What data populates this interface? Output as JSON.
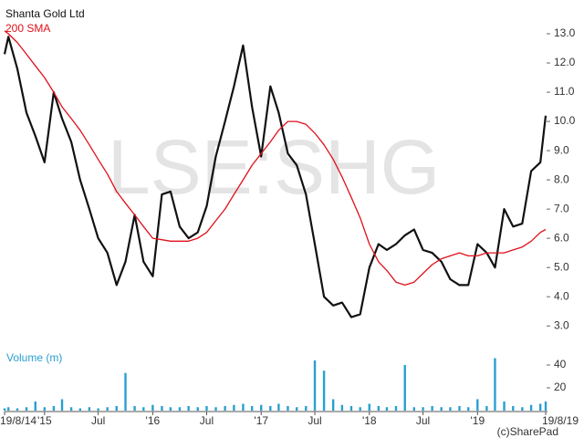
{
  "chart_data": [
    {
      "type": "line",
      "watermark": "LSE:SHG",
      "x": [
        "2014-08-19",
        "2014-09-01",
        "2014-10-01",
        "2014-11-01",
        "2014-12-01",
        "2015-01-01",
        "2015-02-01",
        "2015-03-01",
        "2015-04-01",
        "2015-05-01",
        "2015-06-01",
        "2015-07-01",
        "2015-08-01",
        "2015-09-01",
        "2015-10-01",
        "2015-11-01",
        "2015-12-01",
        "2016-01-01",
        "2016-02-01",
        "2016-03-01",
        "2016-04-01",
        "2016-05-01",
        "2016-06-01",
        "2016-07-01",
        "2016-08-01",
        "2016-09-01",
        "2016-10-01",
        "2016-11-01",
        "2016-12-01",
        "2017-01-01",
        "2017-02-01",
        "2017-03-01",
        "2017-04-01",
        "2017-05-01",
        "2017-06-01",
        "2017-07-01",
        "2017-08-01",
        "2017-09-01",
        "2017-10-01",
        "2017-11-01",
        "2017-12-01",
        "2018-01-01",
        "2018-02-01",
        "2018-03-01",
        "2018-04-01",
        "2018-05-01",
        "2018-06-01",
        "2018-07-01",
        "2018-08-01",
        "2018-09-01",
        "2018-10-01",
        "2018-11-01",
        "2018-12-01",
        "2019-01-01",
        "2019-02-01",
        "2019-03-01",
        "2019-04-01",
        "2019-05-01",
        "2019-06-01",
        "2019-07-01",
        "2019-08-01",
        "2019-08-19"
      ],
      "series": [
        {
          "name": "Shanta Gold Ltd",
          "color": "#111111",
          "width": 2.2,
          "values": [
            12.3,
            12.9,
            11.8,
            10.3,
            9.5,
            8.6,
            11.0,
            10.1,
            9.3,
            8.0,
            7.0,
            6.0,
            5.5,
            4.4,
            5.2,
            6.8,
            5.2,
            4.7,
            7.5,
            7.6,
            6.4,
            6.0,
            6.2,
            7.1,
            8.8,
            10.0,
            11.2,
            12.6,
            10.5,
            8.8,
            11.2,
            10.3,
            8.9,
            8.5,
            7.5,
            5.8,
            4.0,
            3.7,
            3.8,
            3.3,
            3.4,
            5.0,
            5.8,
            5.6,
            5.8,
            6.1,
            6.3,
            5.6,
            5.5,
            5.2,
            4.6,
            4.4,
            4.4,
            5.8,
            5.5,
            5.0,
            7.0,
            6.4,
            6.5,
            8.3,
            8.6,
            10.2
          ]
        },
        {
          "name": "200 SMA",
          "color": "#e0101a",
          "width": 1.3,
          "values": [
            13.1,
            13.0,
            12.7,
            12.3,
            11.9,
            11.5,
            11.0,
            10.5,
            10.1,
            9.7,
            9.2,
            8.7,
            8.2,
            7.6,
            7.2,
            6.8,
            6.4,
            6.0,
            5.95,
            5.9,
            5.9,
            5.9,
            6.0,
            6.2,
            6.6,
            7.0,
            7.5,
            8.0,
            8.5,
            8.9,
            9.3,
            9.7,
            10.0,
            10.0,
            9.9,
            9.6,
            9.2,
            8.7,
            8.1,
            7.4,
            6.7,
            5.8,
            5.2,
            4.9,
            4.5,
            4.4,
            4.5,
            4.8,
            5.1,
            5.3,
            5.4,
            5.5,
            5.4,
            5.4,
            5.5,
            5.5,
            5.5,
            5.6,
            5.7,
            5.9,
            6.2,
            6.3
          ]
        }
      ],
      "xlim": [
        "2014-08-19",
        "2019-08-19"
      ],
      "ylim": [
        2.6,
        14.0
      ],
      "yticks": [
        {
          "value": 3,
          "label": "3.0"
        },
        {
          "value": 4,
          "label": "4.0"
        },
        {
          "value": 5,
          "label": "5.0"
        },
        {
          "value": 6,
          "label": "6.0"
        },
        {
          "value": 7,
          "label": "7.0"
        },
        {
          "value": 8,
          "label": "8.0"
        },
        {
          "value": 9,
          "label": "9.0"
        },
        {
          "value": 10,
          "label": "10.0"
        },
        {
          "value": 11,
          "label": "11.0"
        },
        {
          "value": 12,
          "label": "12.0"
        },
        {
          "value": 13,
          "label": "13.0"
        }
      ]
    },
    {
      "type": "bar",
      "title": "Volume (m)",
      "color": "#2a9fd0",
      "credit": "(c)SharePad",
      "x": [
        "2014-08-19",
        "2014-09-01",
        "2014-10-01",
        "2014-11-01",
        "2014-12-01",
        "2015-01-01",
        "2015-02-01",
        "2015-03-01",
        "2015-04-01",
        "2015-05-01",
        "2015-06-01",
        "2015-07-01",
        "2015-08-01",
        "2015-09-01",
        "2015-10-01",
        "2015-11-01",
        "2015-12-01",
        "2016-01-01",
        "2016-02-01",
        "2016-03-01",
        "2016-04-01",
        "2016-05-01",
        "2016-06-01",
        "2016-07-01",
        "2016-08-01",
        "2016-09-01",
        "2016-10-01",
        "2016-11-01",
        "2016-12-01",
        "2017-01-01",
        "2017-02-01",
        "2017-03-01",
        "2017-04-01",
        "2017-05-01",
        "2017-06-01",
        "2017-07-01",
        "2017-08-01",
        "2017-09-01",
        "2017-10-01",
        "2017-11-01",
        "2017-12-01",
        "2018-01-01",
        "2018-02-01",
        "2018-03-01",
        "2018-04-01",
        "2018-05-01",
        "2018-06-01",
        "2018-07-01",
        "2018-08-01",
        "2018-09-01",
        "2018-10-01",
        "2018-11-01",
        "2018-12-01",
        "2019-01-01",
        "2019-02-01",
        "2019-03-01",
        "2019-04-01",
        "2019-05-01",
        "2019-06-01",
        "2019-07-01",
        "2019-08-01",
        "2019-08-19"
      ],
      "values": [
        2,
        3,
        2,
        3,
        8,
        3,
        4,
        10,
        3,
        2,
        3,
        2,
        3,
        4,
        33,
        4,
        3,
        5,
        4,
        3,
        3,
        4,
        3,
        4,
        3,
        4,
        5,
        6,
        4,
        5,
        4,
        6,
        4,
        3,
        4,
        44,
        35,
        10,
        5,
        4,
        3,
        6,
        4,
        3,
        4,
        40,
        3,
        3,
        4,
        3,
        3,
        4,
        3,
        10,
        4,
        46,
        8,
        4,
        3,
        5,
        6,
        8
      ],
      "xlim": [
        "2014-08-19",
        "2019-08-19"
      ],
      "ylim": [
        0,
        48
      ],
      "yticks": [
        20,
        40
      ],
      "xticks": [
        {
          "value": "2014-08-19",
          "label": "19/8/14"
        },
        {
          "value": "2015-01-01",
          "label": "'15"
        },
        {
          "value": "2015-07-01",
          "label": "Jul"
        },
        {
          "value": "2016-01-01",
          "label": "'16"
        },
        {
          "value": "2016-07-01",
          "label": "Jul"
        },
        {
          "value": "2017-01-01",
          "label": "'17"
        },
        {
          "value": "2017-07-01",
          "label": "Jul"
        },
        {
          "value": "2018-01-01",
          "label": "'18"
        },
        {
          "value": "2018-07-01",
          "label": "Jul"
        },
        {
          "value": "2019-01-01",
          "label": "'19"
        },
        {
          "value": "2019-08-19",
          "label": "19/8/19"
        }
      ]
    }
  ]
}
